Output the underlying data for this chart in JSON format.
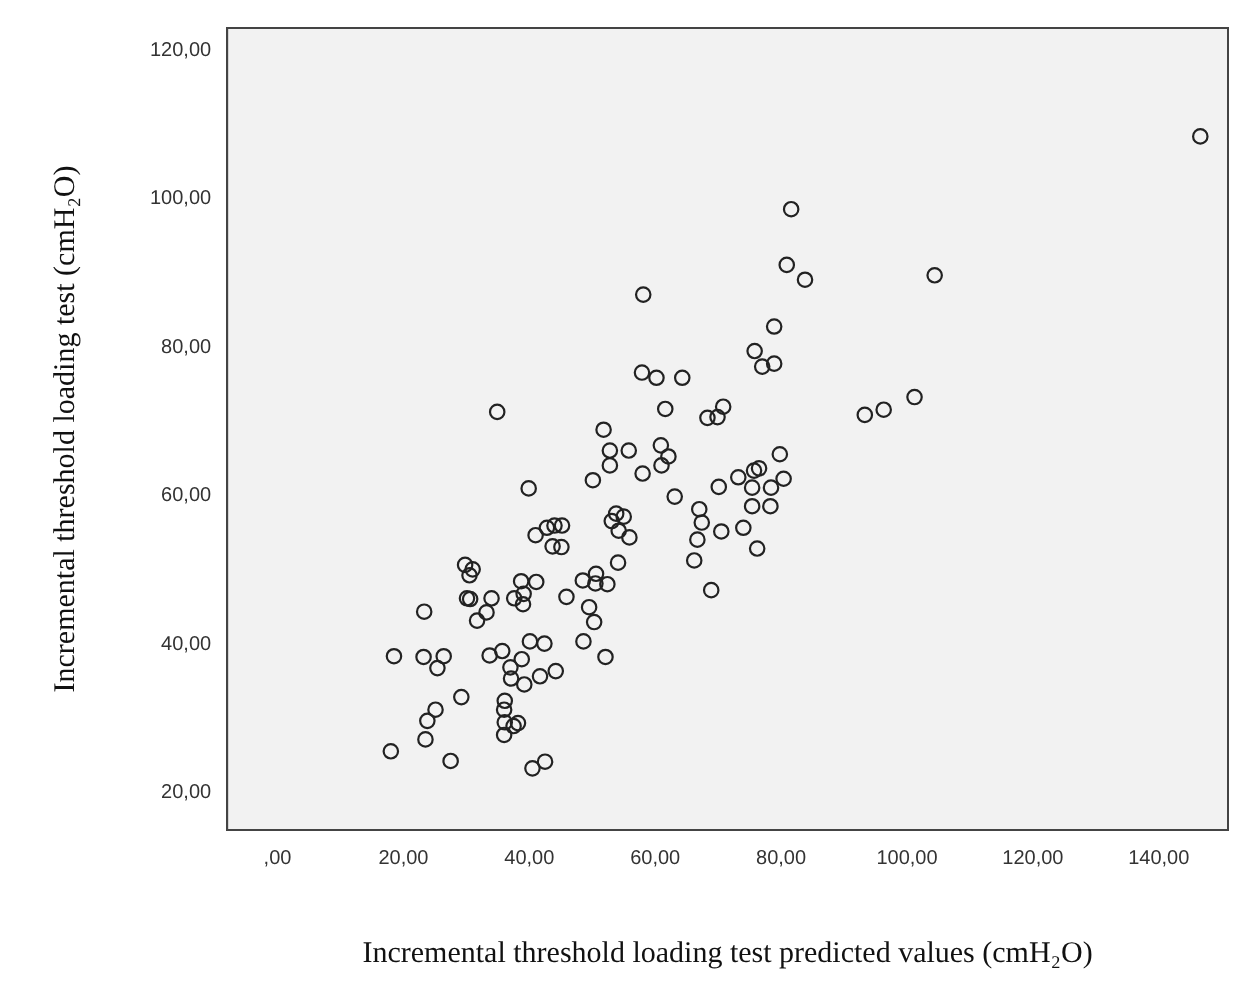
{
  "chart_data": {
    "type": "scatter",
    "xlabel": "Incremental threshold loading test predicted values (cmH₂O)",
    "ylabel": "Incremental threshold loading test (cmH₂O)",
    "marker": "circle",
    "grid": false,
    "legend": false,
    "xlim": [
      -8,
      151
    ],
    "ylim": [
      15,
      123
    ],
    "xticks": [
      {
        "value": 0,
        "label": ",00"
      },
      {
        "value": 20,
        "label": "20,00"
      },
      {
        "value": 40,
        "label": "40,00"
      },
      {
        "value": 60,
        "label": "60,00"
      },
      {
        "value": 80,
        "label": "80,00"
      },
      {
        "value": 100,
        "label": "100,00"
      },
      {
        "value": 120,
        "label": "120,00"
      },
      {
        "value": 140,
        "label": "140,00"
      }
    ],
    "yticks": [
      {
        "value": 20,
        "label": "20,00"
      },
      {
        "value": 40,
        "label": "40,00"
      },
      {
        "value": 60,
        "label": "60,00"
      },
      {
        "value": 80,
        "label": "80,00"
      },
      {
        "value": 100,
        "label": "100,00"
      },
      {
        "value": 120,
        "label": "120,00"
      }
    ],
    "series": [
      {
        "color": "#222222",
        "x": [
          146.6,
          81.6,
          80.9,
          83.8,
          104.4,
          58.1,
          78.9,
          75.8,
          77.0,
          78.9,
          57.9,
          60.2,
          64.3,
          34.9,
          61.6,
          68.3,
          69.9,
          70.8,
          93.3,
          96.3,
          101.2,
          51.8,
          52.8,
          55.8,
          60.9,
          62.1,
          61.0,
          52.8,
          58.0,
          50.1,
          79.8,
          76.5,
          75.7,
          73.2,
          70.1,
          75.4,
          78.4,
          80.4,
          63.1,
          67.0,
          67.4,
          75.4,
          78.3,
          66.7,
          70.5,
          74.0,
          76.2,
          66.2,
          68.9,
          39.9,
          41.0,
          42.8,
          44.0,
          45.2,
          43.7,
          45.1,
          53.1,
          53.8,
          55.0,
          54.2,
          55.9,
          54.1,
          29.8,
          31.0,
          30.5,
          38.7,
          41.1,
          48.5,
          50.6,
          50.5,
          52.4,
          30.1,
          30.6,
          34.0,
          37.6,
          39.1,
          39.0,
          45.9,
          23.3,
          33.2,
          31.7,
          49.5,
          50.3,
          18.5,
          23.2,
          26.4,
          25.4,
          33.7,
          35.7,
          38.8,
          37.0,
          37.1,
          39.2,
          41.7,
          44.2,
          40.1,
          42.4,
          48.6,
          52.1,
          29.2,
          25.1,
          23.8,
          36.1,
          36.0,
          36.1,
          38.2,
          18.0,
          23.5,
          27.5,
          36.0,
          37.5,
          40.5,
          42.5
        ],
        "values": [
          108.4,
          98.6,
          91.1,
          89.1,
          89.7,
          87.1,
          82.8,
          79.5,
          77.4,
          77.8,
          76.6,
          75.9,
          75.9,
          71.3,
          71.7,
          70.5,
          70.6,
          72.0,
          70.9,
          71.6,
          73.3,
          68.9,
          66.1,
          66.1,
          66.8,
          65.3,
          64.1,
          64.1,
          63.0,
          62.1,
          65.6,
          63.7,
          63.4,
          62.5,
          61.2,
          61.1,
          61.1,
          62.3,
          59.9,
          58.2,
          56.4,
          58.6,
          58.6,
          54.1,
          55.2,
          55.7,
          52.9,
          51.3,
          47.3,
          61.0,
          54.7,
          55.7,
          56.0,
          56.0,
          53.2,
          53.1,
          56.6,
          57.6,
          57.2,
          55.3,
          54.4,
          51.0,
          50.7,
          50.1,
          49.3,
          48.5,
          48.4,
          48.6,
          49.5,
          48.2,
          48.1,
          46.2,
          46.1,
          46.2,
          46.2,
          46.8,
          45.4,
          46.4,
          44.4,
          44.3,
          43.2,
          45.0,
          43.0,
          38.4,
          38.3,
          38.4,
          36.8,
          38.5,
          39.1,
          38.0,
          36.9,
          35.4,
          34.6,
          35.7,
          36.4,
          40.4,
          40.1,
          40.4,
          38.3,
          32.9,
          31.2,
          29.7,
          32.4,
          31.2,
          29.5,
          29.4,
          25.6,
          27.2,
          24.3,
          27.8,
          29.0,
          23.3,
          24.2
        ]
      }
    ]
  }
}
